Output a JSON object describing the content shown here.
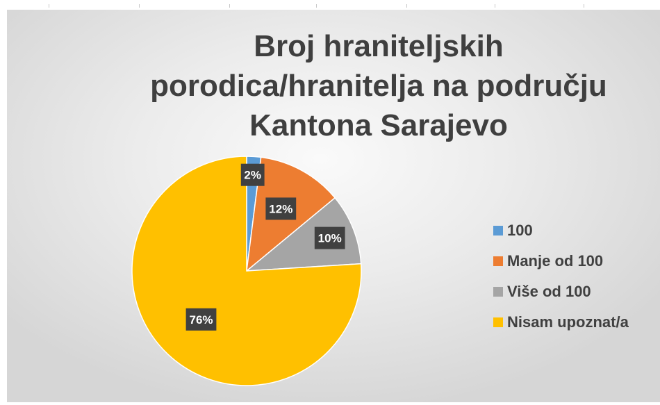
{
  "chart_data": {
    "type": "pie",
    "title_lines": [
      "Broj hraniteljskih",
      "porodica/hranitelja na području",
      "Kantona Sarajevo"
    ],
    "categories": [
      "100",
      "Manje od 100",
      "Više od 100",
      "Nisam upoznat/a"
    ],
    "values": [
      2,
      12,
      10,
      76
    ],
    "labels": [
      "2%",
      "12%",
      "10%",
      "76%"
    ],
    "colors": [
      "#5b9bd5",
      "#ed7d31",
      "#a5a5a5",
      "#ffc000"
    ],
    "label_box_color": "#404040",
    "legend_position": "right"
  }
}
